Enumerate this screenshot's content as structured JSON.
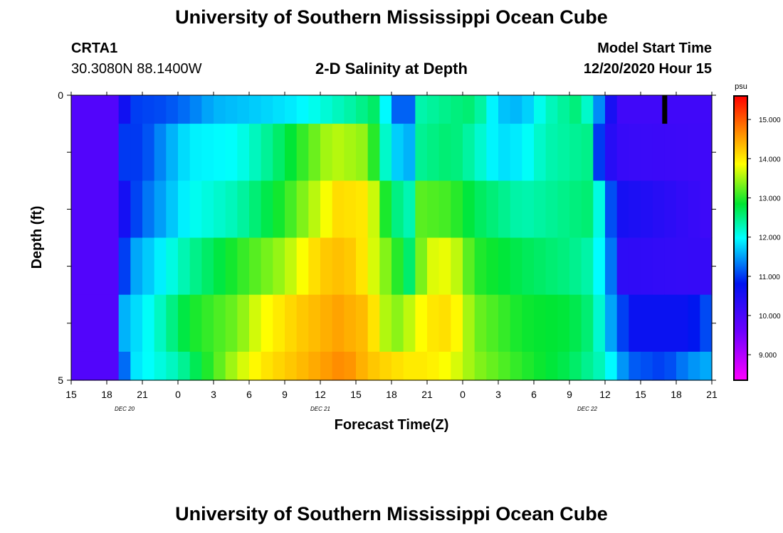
{
  "header": {
    "title": "University of Southern Mississippi Ocean Cube",
    "station_id": "CRTA1",
    "station_coords": "30.3080N 88.1400W",
    "chart_title": "2-D Salinity at Depth",
    "start_label": "Model Start Time",
    "start_value": "12/20/2020 Hour 15"
  },
  "footer": {
    "title": "University of Southern Mississippi Ocean Cube"
  },
  "chart_data": {
    "type": "heatmap",
    "title": "2-D Salinity at Depth",
    "xlabel": "Forecast Time(Z)",
    "ylabel": "Depth (ft)",
    "x_tick_labels": [
      "15",
      "18",
      "21",
      "0",
      "3",
      "6",
      "9",
      "12",
      "15",
      "18",
      "21",
      "0",
      "3",
      "6",
      "9",
      "12",
      "15",
      "18",
      "21"
    ],
    "date_labels": [
      {
        "label": "DEC 20",
        "tick_index": 1.5
      },
      {
        "label": "DEC 21",
        "tick_index": 7
      },
      {
        "label": "DEC 22",
        "tick_index": 14.5
      }
    ],
    "y_tick_labels": [
      {
        "value": 0,
        "label": "0"
      },
      {
        "value": 1,
        "label": ""
      },
      {
        "value": 2,
        "label": ""
      },
      {
        "value": 3,
        "label": ""
      },
      {
        "value": 4,
        "label": ""
      },
      {
        "value": 5,
        "label": "5"
      }
    ],
    "ylim": [
      0,
      5
    ],
    "hours_range": [
      0,
      54
    ],
    "colorbar": {
      "unit": "psu",
      "vmin": 8.35,
      "vmax": 15.6,
      "ticks": [
        "9.000",
        "10.000",
        "11.000",
        "12.000",
        "13.000",
        "14.000",
        "15.000"
      ]
    },
    "depth_bins": [
      "0-0.5",
      "0.5-1.5",
      "1.5-2.5",
      "2.5-3.5",
      "3.5-4.5",
      "4.5-5"
    ],
    "rows_keyframes": [
      [
        [
          0,
          9.9
        ],
        [
          3.9,
          9.9
        ],
        [
          4.2,
          10.4
        ],
        [
          5,
          11.0
        ],
        [
          8,
          11.1
        ],
        [
          10,
          11.3
        ],
        [
          12,
          11.6
        ],
        [
          15,
          11.7
        ],
        [
          19,
          11.9
        ],
        [
          24,
          12.4
        ],
        [
          26,
          12.7
        ],
        [
          27,
          11.2
        ],
        [
          28.5,
          11.2
        ],
        [
          29,
          12.3
        ],
        [
          32,
          12.5
        ],
        [
          34,
          12.6
        ],
        [
          36,
          11.7
        ],
        [
          38,
          11.6
        ],
        [
          40,
          12.2
        ],
        [
          43,
          12.6
        ],
        [
          44,
          11.8
        ],
        [
          45,
          11.0
        ],
        [
          46,
          10.1
        ],
        [
          54,
          10.1
        ]
      ],
      [
        [
          0,
          9.9
        ],
        [
          3.9,
          9.9
        ],
        [
          4.2,
          11.0
        ],
        [
          6,
          11.0
        ],
        [
          8,
          11.5
        ],
        [
          10,
          11.9
        ],
        [
          14,
          12.0
        ],
        [
          17,
          12.5
        ],
        [
          22,
          13.6
        ],
        [
          25,
          13.4
        ],
        [
          27,
          11.8
        ],
        [
          28.5,
          11.6
        ],
        [
          29,
          12.4
        ],
        [
          32,
          12.6
        ],
        [
          34,
          12.3
        ],
        [
          36,
          11.8
        ],
        [
          38,
          11.9
        ],
        [
          40,
          12.3
        ],
        [
          44,
          12.5
        ],
        [
          44.6,
          10.7
        ],
        [
          46,
          10.2
        ],
        [
          54,
          10.1
        ]
      ],
      [
        [
          0,
          9.9
        ],
        [
          3.9,
          9.9
        ],
        [
          4.7,
          10.8
        ],
        [
          6,
          11.2
        ],
        [
          8,
          11.6
        ],
        [
          10,
          12.0
        ],
        [
          14,
          12.3
        ],
        [
          18,
          13.0
        ],
        [
          21,
          13.7
        ],
        [
          22.5,
          14.1
        ],
        [
          25,
          14.0
        ],
        [
          27,
          12.6
        ],
        [
          28.5,
          12.3
        ],
        [
          29.5,
          13.2
        ],
        [
          32,
          13.1
        ],
        [
          34,
          12.7
        ],
        [
          36,
          12.5
        ],
        [
          38,
          12.3
        ],
        [
          40,
          12.4
        ],
        [
          44,
          12.6
        ],
        [
          45,
          11.6
        ],
        [
          46,
          10.6
        ],
        [
          54,
          10.1
        ]
      ],
      [
        [
          0,
          9.9
        ],
        [
          3.9,
          9.9
        ],
        [
          4.7,
          11.4
        ],
        [
          7,
          11.8
        ],
        [
          10,
          12.4
        ],
        [
          14,
          13.0
        ],
        [
          18,
          13.5
        ],
        [
          21,
          14.2
        ],
        [
          22.5,
          14.3
        ],
        [
          24,
          14.2
        ],
        [
          27,
          13.2
        ],
        [
          28.5,
          12.6
        ],
        [
          30,
          13.7
        ],
        [
          32,
          13.8
        ],
        [
          34,
          13.0
        ],
        [
          38,
          12.7
        ],
        [
          42,
          12.5
        ],
        [
          44,
          12.3
        ],
        [
          45.5,
          11.3
        ],
        [
          46.5,
          10.3
        ],
        [
          54,
          10.2
        ]
      ],
      [
        [
          0,
          9.9
        ],
        [
          3.9,
          9.9
        ],
        [
          4.5,
          11.6
        ],
        [
          7,
          12.1
        ],
        [
          10,
          12.9
        ],
        [
          14,
          13.3
        ],
        [
          16,
          13.8
        ],
        [
          19,
          14.2
        ],
        [
          22.5,
          14.5
        ],
        [
          25,
          14.3
        ],
        [
          27,
          13.3
        ],
        [
          28.5,
          13.6
        ],
        [
          30,
          14.0
        ],
        [
          32,
          14.1
        ],
        [
          34,
          13.3
        ],
        [
          38,
          12.9
        ],
        [
          42,
          12.8
        ],
        [
          44,
          12.5
        ],
        [
          46,
          11.2
        ],
        [
          47.5,
          10.7
        ],
        [
          52,
          10.7
        ],
        [
          54,
          11.2
        ]
      ],
      [
        [
          0,
          9.9
        ],
        [
          3.6,
          9.9
        ],
        [
          4.0,
          10.7
        ],
        [
          5,
          11.8
        ],
        [
          9,
          12.3
        ],
        [
          12,
          13.1
        ],
        [
          14,
          13.6
        ],
        [
          16,
          14.0
        ],
        [
          20,
          14.4
        ],
        [
          23,
          14.7
        ],
        [
          25,
          14.3
        ],
        [
          27,
          14.1
        ],
        [
          28.5,
          14.0
        ],
        [
          30,
          14.0
        ],
        [
          32,
          13.8
        ],
        [
          34,
          13.4
        ],
        [
          38,
          13.0
        ],
        [
          42,
          12.7
        ],
        [
          45,
          12.2
        ],
        [
          47,
          11.2
        ],
        [
          50,
          11.0
        ],
        [
          52,
          11.4
        ],
        [
          54,
          11.6
        ]
      ]
    ],
    "marker": {
      "hour": 50,
      "depth_range": [
        0,
        0.5
      ],
      "color": "#000000"
    }
  }
}
